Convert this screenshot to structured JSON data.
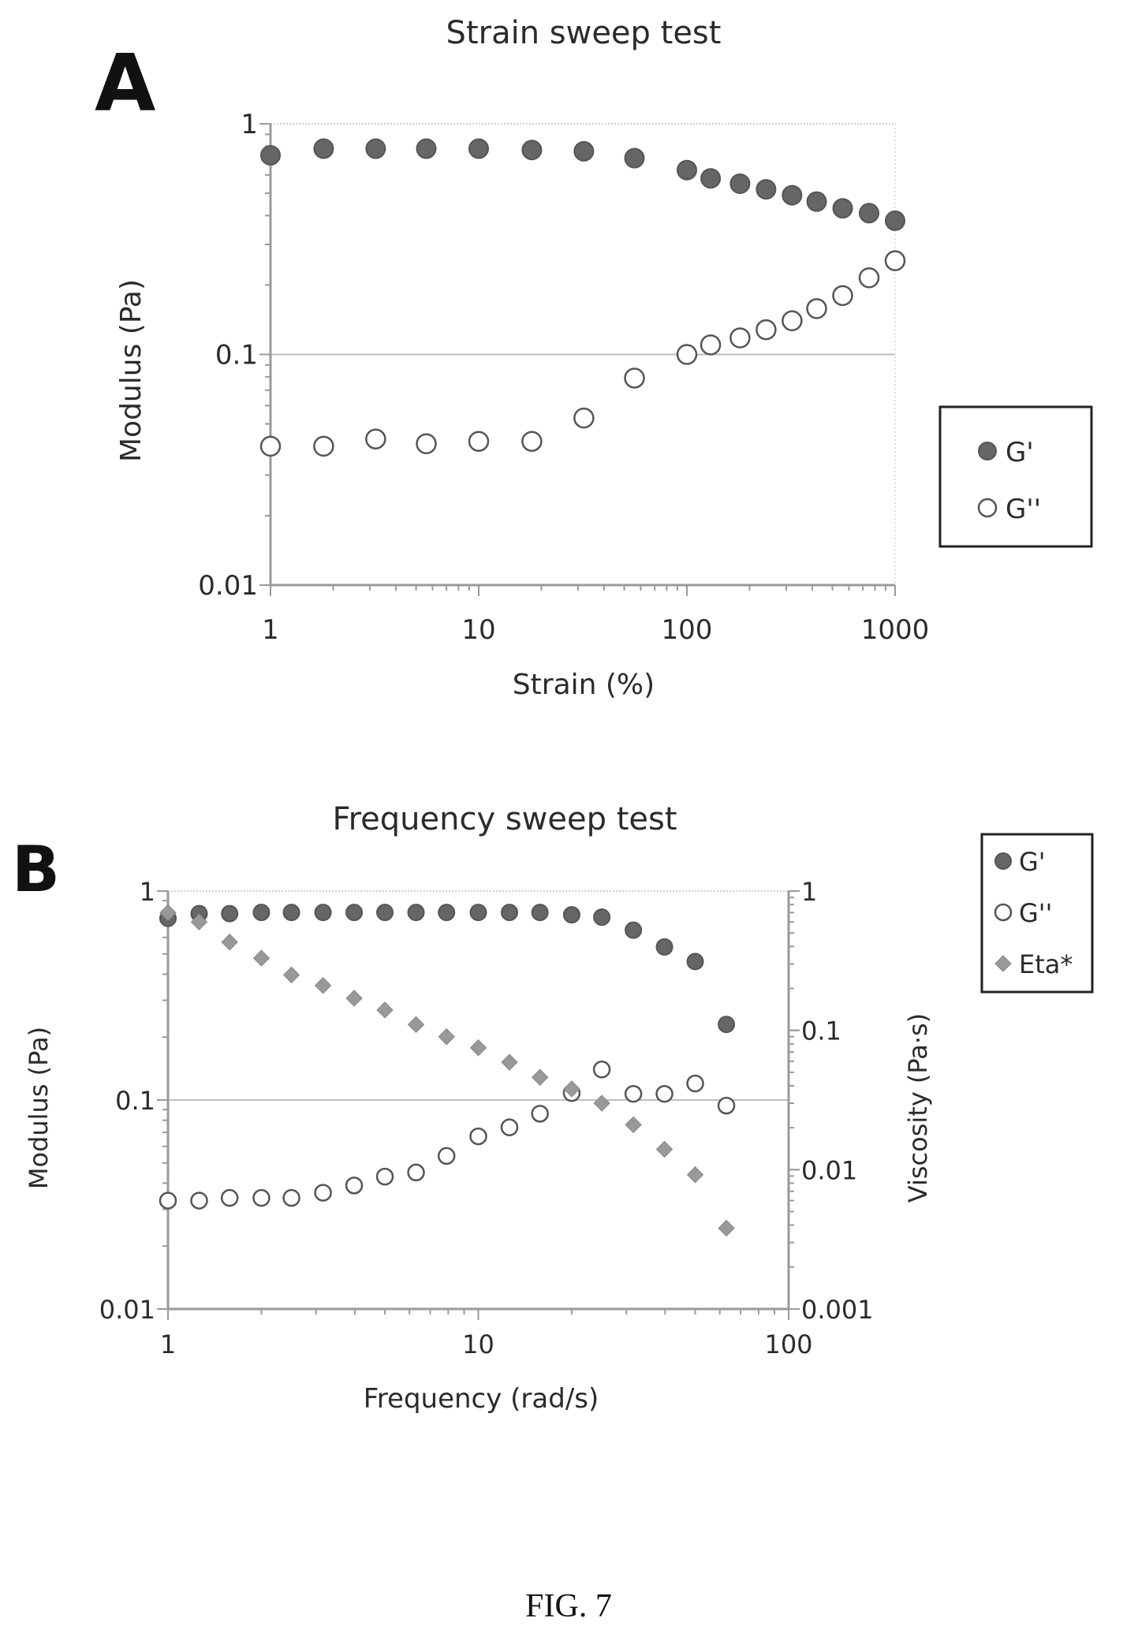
{
  "figure_caption": "FIG. 7",
  "chart_data": [
    {
      "panel": "A",
      "type": "scatter",
      "title": "Strain sweep test",
      "xlabel": "Strain (%)",
      "ylabel": "Modulus (Pa)",
      "xscale": "log",
      "yscale": "log",
      "xlim": [
        1,
        1000
      ],
      "ylim": [
        0.01,
        1
      ],
      "x_ticks": [
        "1",
        "10",
        "100",
        "1000"
      ],
      "y_ticks": [
        "0.01",
        "0.1",
        "1"
      ],
      "grid": "major horizontal",
      "legend_position": "right",
      "series": [
        {
          "name": "G'",
          "marker": "filled-circle",
          "color": "#666666",
          "x": [
            1,
            1.8,
            3.2,
            5.6,
            10,
            18,
            32,
            56,
            100,
            130,
            180,
            240,
            320,
            420,
            560,
            750,
            1000
          ],
          "y": [
            0.73,
            0.78,
            0.78,
            0.78,
            0.78,
            0.77,
            0.76,
            0.71,
            0.63,
            0.58,
            0.55,
            0.52,
            0.49,
            0.46,
            0.43,
            0.41,
            0.38
          ]
        },
        {
          "name": "G''",
          "marker": "open-circle",
          "color": "#666666",
          "x": [
            1,
            1.8,
            3.2,
            5.6,
            10,
            18,
            32,
            56,
            100,
            130,
            180,
            240,
            320,
            420,
            560,
            750,
            1000
          ],
          "y": [
            0.04,
            0.04,
            0.043,
            0.041,
            0.042,
            0.042,
            0.053,
            0.079,
            0.1,
            0.11,
            0.118,
            0.128,
            0.14,
            0.158,
            0.18,
            0.215,
            0.255
          ]
        }
      ]
    },
    {
      "panel": "B",
      "type": "scatter",
      "title": "Frequency sweep test",
      "xlabel": "Frequency (rad/s)",
      "ylabel": "Modulus (Pa)",
      "y2label": "Viscosity (Pa·s)",
      "xscale": "log",
      "yscale": "log",
      "y2scale": "log",
      "xlim": [
        1,
        100
      ],
      "ylim": [
        0.01,
        1
      ],
      "y2lim": [
        0.001,
        1
      ],
      "x_ticks": [
        "1",
        "10",
        "100"
      ],
      "y_ticks": [
        "0.01",
        "0.1",
        "1"
      ],
      "y2_ticks": [
        "0.001",
        "0.01",
        "0.1",
        "1"
      ],
      "grid": "major horizontal",
      "legend_position": "top-right outside",
      "series": [
        {
          "name": "G'",
          "marker": "filled-circle",
          "color": "#666666",
          "axis": "left",
          "x": [
            1,
            1.26,
            1.58,
            2,
            2.5,
            3.16,
            3.98,
            5,
            6.3,
            7.9,
            10,
            12.6,
            15.8,
            20,
            25,
            31.6,
            39.8,
            50,
            63
          ],
          "y": [
            0.74,
            0.78,
            0.78,
            0.79,
            0.79,
            0.79,
            0.79,
            0.79,
            0.79,
            0.79,
            0.79,
            0.79,
            0.79,
            0.77,
            0.75,
            0.65,
            0.54,
            0.46,
            0.23
          ]
        },
        {
          "name": "G''",
          "marker": "open-circle",
          "color": "#666666",
          "axis": "left",
          "x": [
            1,
            1.26,
            1.58,
            2,
            2.5,
            3.16,
            3.98,
            5,
            6.3,
            7.9,
            10,
            12.6,
            15.8,
            20,
            25,
            31.6,
            39.8,
            50,
            63
          ],
          "y": [
            0.033,
            0.033,
            0.034,
            0.034,
            0.034,
            0.036,
            0.039,
            0.043,
            0.045,
            0.054,
            0.067,
            0.074,
            0.086,
            0.108,
            0.14,
            0.107,
            0.107,
            0.12,
            0.094
          ]
        },
        {
          "name": "Eta*",
          "marker": "diamond",
          "color": "#999999",
          "axis": "right",
          "x": [
            1,
            1.26,
            1.58,
            2,
            2.5,
            3.16,
            3.98,
            5,
            6.3,
            7.9,
            10,
            12.6,
            15.8,
            20,
            25,
            31.6,
            39.8,
            50,
            63
          ],
          "y": [
            0.7,
            0.6,
            0.43,
            0.33,
            0.25,
            0.21,
            0.17,
            0.14,
            0.11,
            0.09,
            0.075,
            0.059,
            0.046,
            0.038,
            0.03,
            0.021,
            0.014,
            0.0092,
            0.0038
          ]
        }
      ]
    }
  ]
}
